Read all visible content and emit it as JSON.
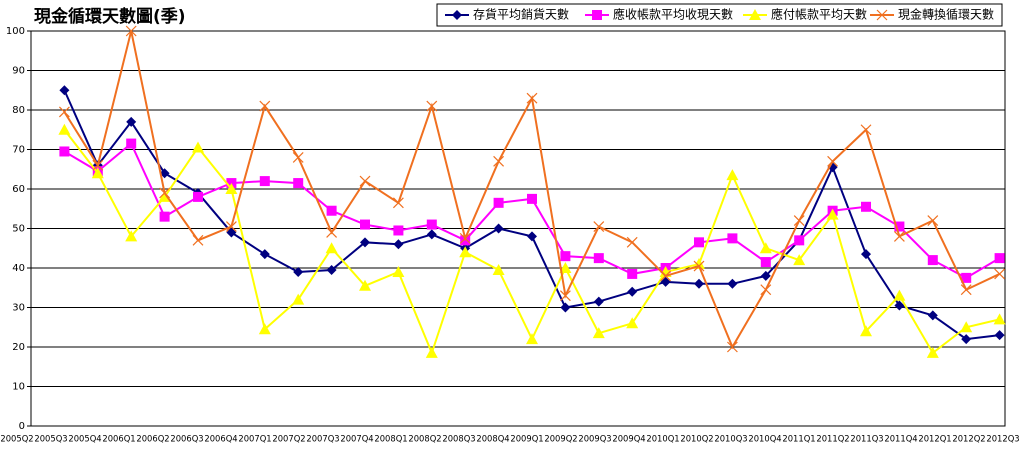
{
  "chart_data": {
    "type": "line",
    "title": "現金循環天數圖(季)",
    "categories": [
      "2005Q2",
      "2005Q3",
      "2005Q4",
      "2006Q1",
      "2006Q2",
      "2006Q3",
      "2006Q4",
      "2007Q1",
      "2007Q2",
      "2007Q3",
      "2007Q4",
      "2008Q1",
      "2008Q2",
      "2008Q3",
      "2008Q4",
      "2009Q1",
      "2009Q2",
      "2009Q3",
      "2009Q4",
      "2010Q1",
      "2010Q2",
      "2010Q3",
      "2010Q4",
      "2011Q1",
      "2011Q2",
      "2011Q3",
      "2011Q4",
      "2012Q1",
      "2012Q2",
      "2012Q3"
    ],
    "series": [
      {
        "name": "存貨平均銷貨天數",
        "color": "#000080",
        "marker": "diamond",
        "values": [
          null,
          85,
          66,
          77,
          64,
          59,
          49,
          43.5,
          39,
          39.5,
          46.5,
          46,
          48.5,
          45,
          50,
          48,
          30,
          31.5,
          34,
          36.5,
          36,
          36,
          38,
          47,
          65.5,
          43.5,
          30.5,
          28,
          22,
          23
        ]
      },
      {
        "name": "應收帳款平均收現天數",
        "color": "#ff00ff",
        "marker": "square",
        "values": [
          null,
          69.5,
          64.5,
          71.5,
          53,
          58,
          61.5,
          62,
          61.5,
          54.5,
          51,
          49.5,
          51,
          47,
          56.5,
          57.5,
          43,
          42.5,
          38.5,
          40,
          46.5,
          47.5,
          41.5,
          47,
          54.5,
          55.5,
          50.5,
          42,
          37.5,
          42.5
        ]
      },
      {
        "name": "應付帳款平均天數",
        "color": "#ffff00",
        "marker": "triangle",
        "values": [
          null,
          75,
          64,
          48,
          58,
          70.5,
          60,
          24.5,
          32,
          45,
          35.5,
          39,
          18.5,
          44,
          39.5,
          22,
          40,
          23.5,
          26,
          39,
          41,
          63.5,
          45,
          42,
          53.5,
          24,
          33,
          18.5,
          25,
          27
        ]
      },
      {
        "name": "現金轉換循環天數",
        "color": "#f07020",
        "marker": "x",
        "values": [
          null,
          79.5,
          66,
          100,
          59,
          47,
          50.5,
          81,
          68,
          49,
          62,
          56.5,
          81,
          47.5,
          67,
          83,
          33,
          50.5,
          46.5,
          38,
          40.5,
          20,
          34.5,
          52,
          67,
          75,
          48,
          52,
          34.5,
          38.5
        ]
      }
    ],
    "ylim": [
      0,
      100
    ],
    "yticks": [
      0,
      10,
      20,
      30,
      40,
      50,
      60,
      70,
      80,
      90,
      100
    ],
    "grid": true
  }
}
